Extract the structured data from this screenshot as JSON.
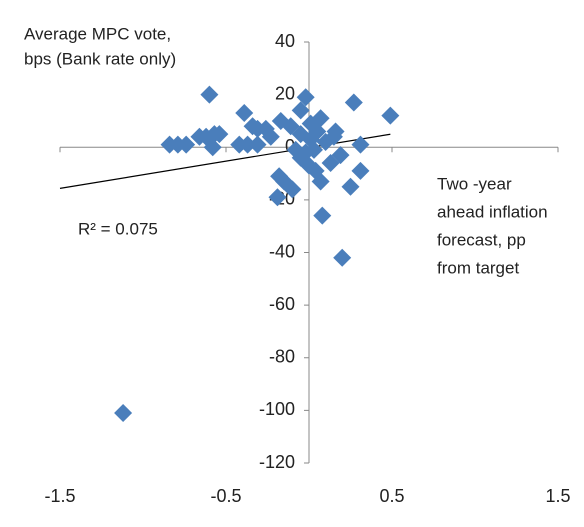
{
  "chart_data": {
    "type": "scatter",
    "y_label_lines": [
      "Average MPC vote,",
      "bps (Bank rate only)"
    ],
    "x_label_lines": [
      "Two -year",
      "ahead inflation",
      "forecast, pp",
      "from target"
    ],
    "annotation": "R² = 0.075",
    "color": "#4a7ebb",
    "trendline": true,
    "x": [
      -1.12,
      -0.6,
      -0.02,
      0.27,
      0.49,
      -0.84,
      -0.79,
      -0.74,
      -0.66,
      -0.62,
      -0.57,
      -0.54,
      -0.58,
      -0.39,
      -0.34,
      -0.31,
      -0.42,
      -0.37,
      -0.31,
      -0.26,
      -0.23,
      -0.17,
      -0.11,
      -0.05,
      0.01,
      0.07,
      -0.05,
      0.01,
      0.05,
      0.16,
      0.31,
      -0.18,
      -0.15,
      -0.1,
      -0.19,
      0.08,
      0.25,
      0.31,
      0.2,
      0,
      0.04,
      0.07,
      0.13,
      0.19,
      -0.05,
      -0.02,
      0.1,
      0.15,
      -0.08,
      0.03
    ],
    "values": [
      -101,
      20,
      19,
      17,
      12,
      1,
      1,
      1,
      4,
      4,
      5,
      5,
      0,
      13,
      8,
      7,
      1,
      1,
      1,
      7,
      4,
      10,
      8,
      14,
      9,
      11,
      5,
      3,
      6,
      6,
      1,
      -11,
      -13,
      -16,
      -19,
      -26,
      -15,
      -9,
      -42,
      -7,
      -9,
      -13,
      -6,
      -3,
      -4,
      -2,
      2,
      4,
      -1,
      -1
    ],
    "xlim": [
      -1.5,
      1.5
    ],
    "xticks": [
      -1.5,
      -0.5,
      0.5,
      1.5
    ],
    "ylim": [
      -120,
      40
    ],
    "yticks": [
      -120,
      -100,
      -80,
      -60,
      -40,
      -20,
      0,
      20,
      40
    ]
  }
}
